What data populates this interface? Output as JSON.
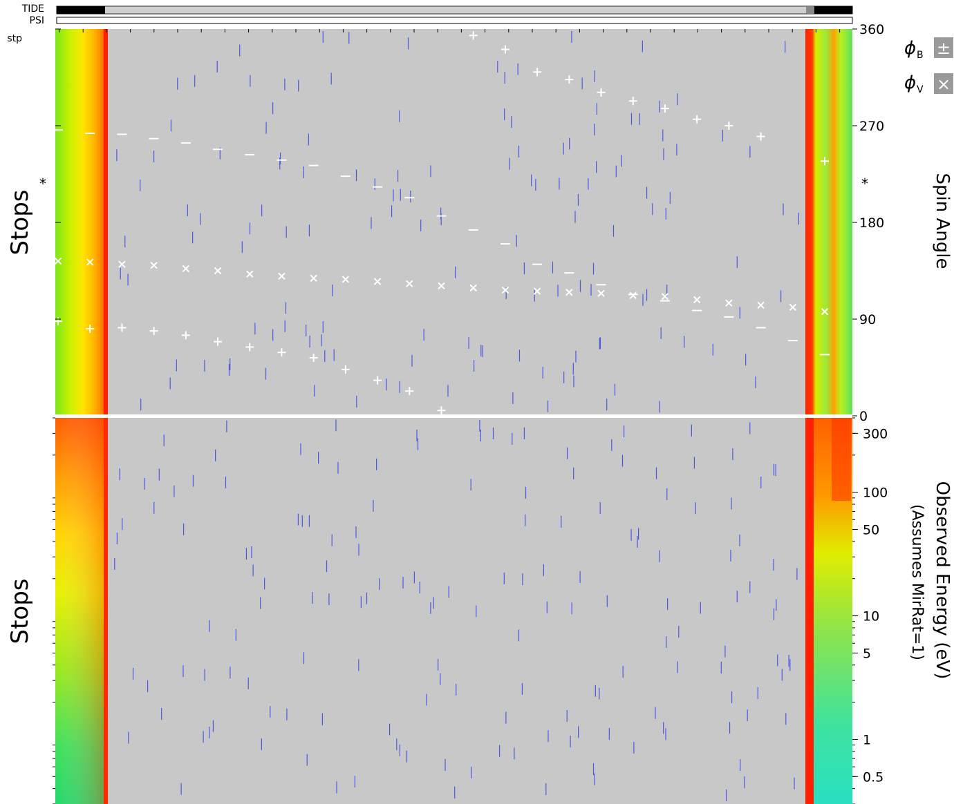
{
  "header": {
    "bar_labels": [
      "TIDE",
      "PSI",
      "stp"
    ]
  },
  "colors": {
    "background_gray": "#c8c8c8",
    "tick_blue": "#4a5ae0",
    "marker_white": "#ffffff"
  },
  "chart_data": [
    {
      "type": "scatter",
      "panel": "spin-angle",
      "ylabel_left": "Stops",
      "ylabel_right": "Spin Angle",
      "ylim": [
        0,
        360
      ],
      "yticks": [
        "0",
        "90",
        "180",
        "270",
        "360"
      ],
      "star_marker": "*",
      "star_value": 218,
      "legend": [
        {
          "symbol": "±",
          "label_main": "ϕ",
          "label_sub": "B"
        },
        {
          "symbol": "×",
          "label_main": "ϕ",
          "label_sub": "V"
        }
      ],
      "series": [
        {
          "name": "ϕB +",
          "marker": "+",
          "values": [
            88,
            81,
            82,
            79,
            75,
            69,
            64,
            59,
            54,
            43,
            33,
            23,
            5,
            354,
            341,
            320,
            313,
            301,
            293,
            286,
            276,
            270,
            260,
            null,
            237
          ]
        },
        {
          "name": "ϕB −",
          "marker": "−",
          "values": [
            266,
            263,
            262,
            258,
            254,
            248,
            243,
            238,
            233,
            223,
            213,
            203,
            186,
            173,
            160,
            141,
            133,
            122,
            113,
            107,
            98,
            92,
            82,
            70,
            57
          ]
        },
        {
          "name": "ϕV",
          "marker": "×",
          "values": [
            144,
            143,
            141,
            140,
            137,
            135,
            132,
            130,
            128,
            127,
            125,
            123,
            121,
            119,
            117,
            116,
            115,
            114,
            112,
            111,
            108,
            105,
            103,
            101,
            97
          ]
        }
      ]
    },
    {
      "type": "heatmap",
      "panel": "energy",
      "ylabel_left": "Stops",
      "ylabel_right": "Observed Energy (eV)",
      "ylabel_right_sub": "(Assumes MirRat=1)",
      "scale": "log",
      "ylim": [
        0.3,
        400
      ],
      "yticks": [
        "0.5",
        "1",
        "5",
        "10",
        "50",
        "100",
        "300"
      ]
    }
  ]
}
